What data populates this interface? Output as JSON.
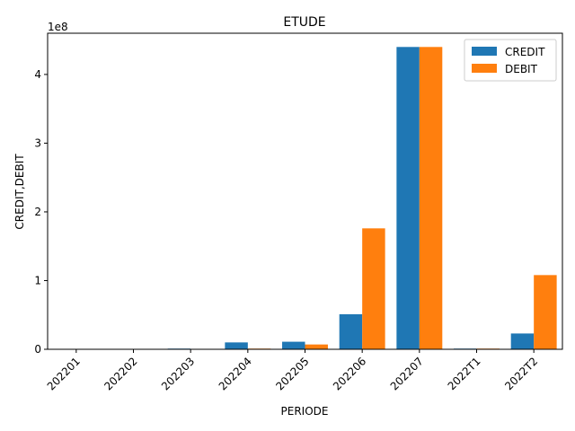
{
  "chart_data": {
    "type": "bar",
    "title": "ETUDE",
    "xlabel": "PERIODE",
    "ylabel": "CREDIT,DEBIT",
    "y_offset_label": "1e8",
    "y_scale": 100000000,
    "ylim": [
      0,
      460000000
    ],
    "yticks": [
      0,
      100000000,
      200000000,
      300000000,
      400000000
    ],
    "ytick_labels": [
      "0",
      "1",
      "2",
      "3",
      "4"
    ],
    "categories": [
      "202201",
      "202202",
      "202203",
      "202204",
      "202205",
      "202206",
      "202207",
      "2022T1",
      "2022T2"
    ],
    "series": [
      {
        "name": "CREDIT",
        "color": "#1f77b4",
        "values": [
          0,
          0,
          1000000,
          10000000,
          11000000,
          51000000,
          440000000,
          1000000,
          23000000
        ]
      },
      {
        "name": "DEBIT",
        "color": "#ff7f0e",
        "values": [
          0,
          0,
          0,
          1000000,
          7000000,
          176000000,
          440000000,
          1000000,
          108000000
        ]
      }
    ],
    "legend_position": "top-right",
    "grid": false
  }
}
